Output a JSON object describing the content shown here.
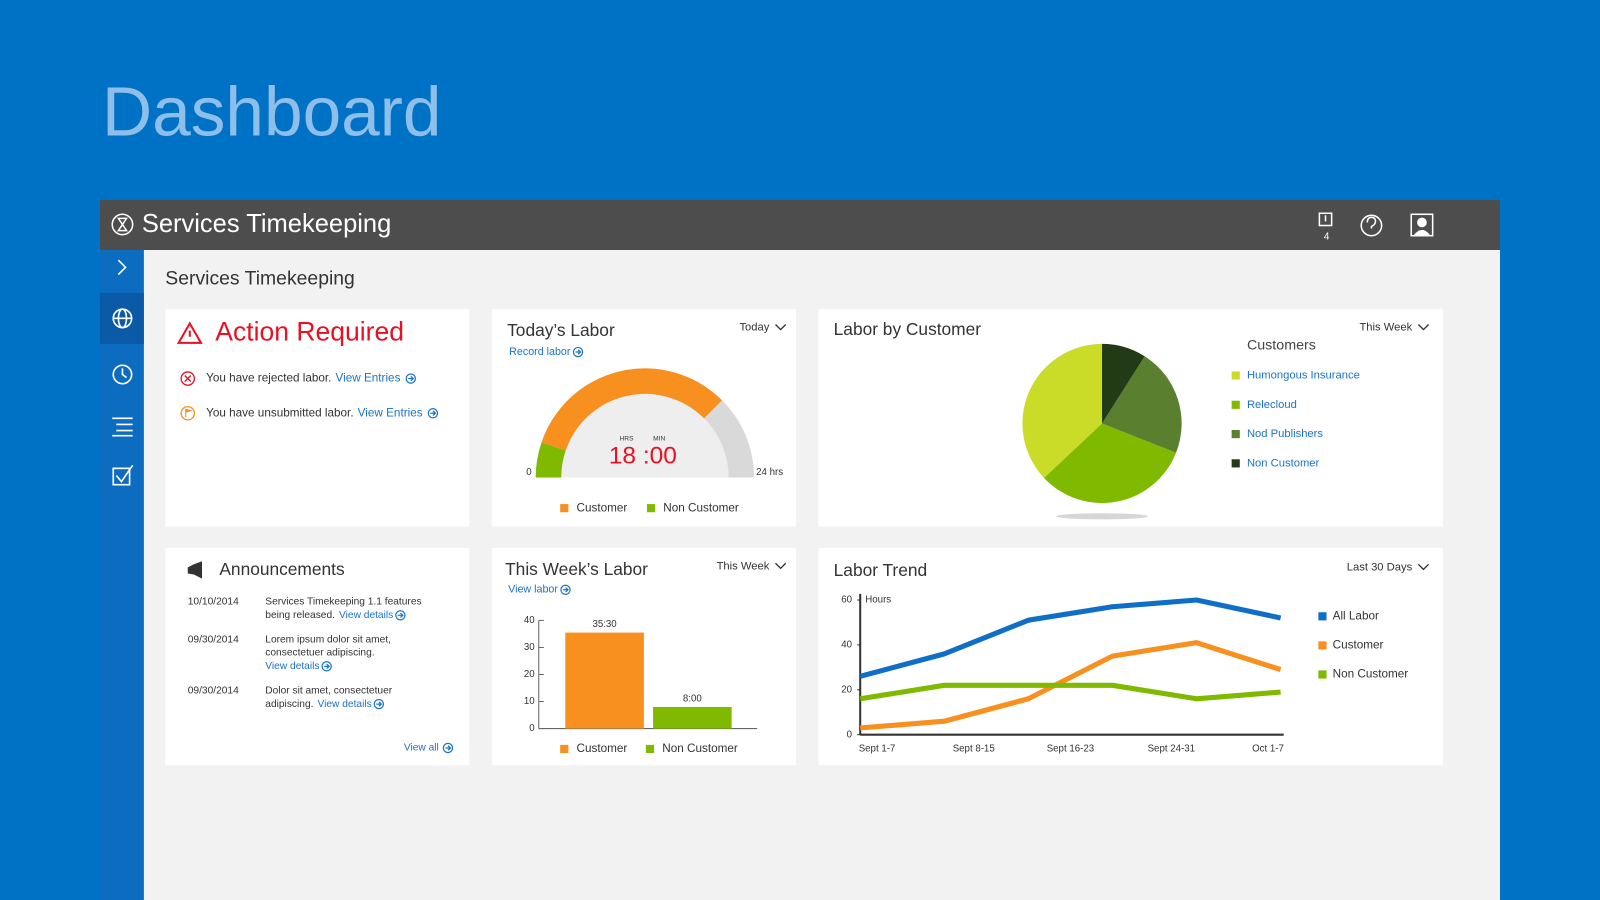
{
  "header": {
    "page_title": "Dashboard",
    "app_title": "Services Timekeeping",
    "notification_count": 4,
    "content_title": "Services Timekeeping"
  },
  "action_required": {
    "title": "Action Required",
    "items": [
      {
        "text": "You have rejected labor.",
        "link": "View Entries"
      },
      {
        "text": "You have unsubmitted labor.",
        "link": "View Entries"
      }
    ]
  },
  "announcements": {
    "title": "Announcements",
    "items": [
      {
        "date": "10/10/2014",
        "lines": [
          "Services Timekeeping 1.1 features",
          "being released."
        ],
        "link": "View details"
      },
      {
        "date": "09/30/2014",
        "lines": [
          "Lorem ipsum dolor sit amet,",
          "consectetuer adipiscing."
        ],
        "link": "View details"
      },
      {
        "date": "09/30/2014",
        "lines": [
          "Dolor sit amet, consectetuer",
          "adipiscing."
        ],
        "link": "View details"
      }
    ],
    "view_all": "View all"
  },
  "chart_data": [
    {
      "type": "gauge",
      "title": "Today’s Labor",
      "link": "Record labor",
      "period": "Today",
      "ylim": [
        0,
        24
      ],
      "yticks": [
        0,
        {
          "value": 24,
          "label": "24 hrs"
        }
      ],
      "readout_units": [
        "HRS",
        "MIN"
      ],
      "readout": "18 :00",
      "series": [
        {
          "name": "Customer",
          "color": "#f7901e",
          "values": [
            15.5
          ]
        },
        {
          "name": "Non Customer",
          "color": "#7fba00",
          "values": [
            2.5
          ]
        }
      ]
    },
    {
      "type": "bar",
      "title": "This Week’s Labor",
      "link": "View labor",
      "period": "This Week",
      "categories": [
        "Customer",
        "Non Customer"
      ],
      "values": [
        35.5,
        8
      ],
      "value_labels": [
        "35:30",
        "8:00"
      ],
      "colors": [
        "#f7901e",
        "#7fba00"
      ],
      "ylim": [
        0,
        40
      ],
      "yticks": [
        0,
        10,
        20,
        30,
        40
      ]
    },
    {
      "type": "pie",
      "title": "Labor by Customer",
      "period": "This Week",
      "legend_title": "Customers",
      "categories": [
        "Humongous Insurance",
        "Relecloud",
        "Nod Publishers",
        "Non Customer"
      ],
      "values": [
        37,
        32,
        22,
        9
      ],
      "colors": [
        "#cadc28",
        "#7fba00",
        "#5a7f2e",
        "#233a16"
      ]
    },
    {
      "type": "line",
      "title": "Labor Trend",
      "period": "Last 30 Days",
      "y_label": "Hours",
      "xlim": [
        0,
        5
      ],
      "xticks": [
        {
          "value": 0.2,
          "label": "Sept 1-7"
        },
        {
          "value": 1.35,
          "label": "Sept 8-15"
        },
        {
          "value": 2.5,
          "label": "Sept 16-23"
        },
        {
          "value": 3.7,
          "label": "Sept 24-31"
        },
        {
          "value": 4.85,
          "label": "Oct 1-7"
        }
      ],
      "ylim": [
        0,
        60
      ],
      "yticks": [
        0,
        20,
        40,
        60
      ],
      "series": [
        {
          "name": "All Labor",
          "color": "#0f6fc6",
          "values": [
            26,
            36,
            51,
            57,
            60,
            52
          ]
        },
        {
          "name": "Customer",
          "color": "#f7901e",
          "values": [
            3,
            6,
            16,
            35,
            41,
            29
          ]
        },
        {
          "name": "Non Customer",
          "color": "#7fba00",
          "values": [
            16,
            22,
            22,
            22,
            16,
            19
          ]
        }
      ]
    }
  ]
}
